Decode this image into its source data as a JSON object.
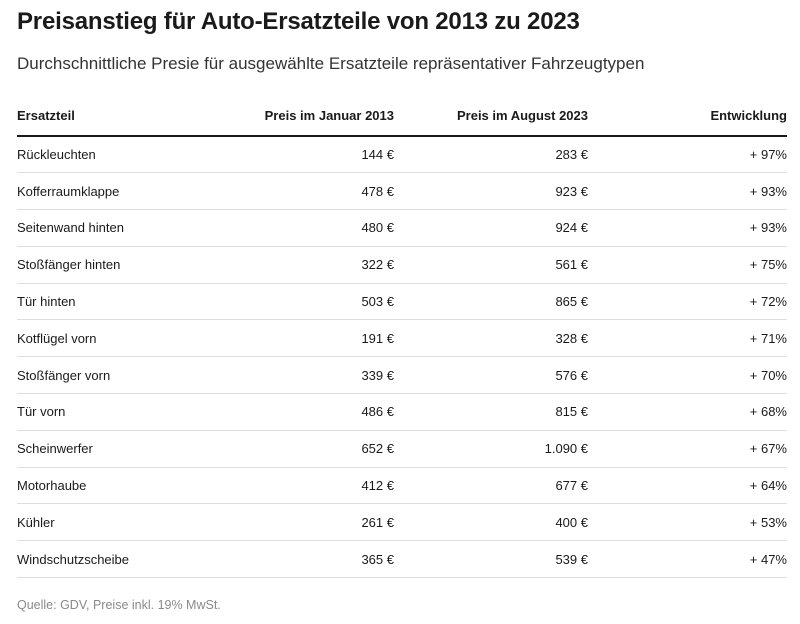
{
  "title": "Preisanstieg für Auto-Ersatzteile von 2013 zu 2023",
  "subtitle": "Durchschnittliche Presie für ausgewählte Ersatzteile repräsentativer Fahrzeugtypen",
  "source": "Quelle: GDV, Preise inkl. 19% MwSt.",
  "chart_data": {
    "type": "table",
    "title": "Preisanstieg für Auto-Ersatzteile von 2013 zu 2023",
    "subtitle": "Durchschnittliche Presie für ausgewählte Ersatzteile repräsentativer Fahrzeugtypen",
    "columns": [
      "Ersatzteil",
      "Preis im Januar 2013",
      "Preis im August 2023",
      "Entwicklung"
    ],
    "rows": [
      [
        "Rückleuchten",
        "144 €",
        "283 €",
        "+ 97%"
      ],
      [
        "Kofferraumklappe",
        "478 €",
        "923 €",
        "+ 93%"
      ],
      [
        "Seitenwand hinten",
        "480 €",
        "924 €",
        "+ 93%"
      ],
      [
        "Stoßfänger hinten",
        "322 €",
        "561 €",
        "+ 75%"
      ],
      [
        "Tür hinten",
        "503 €",
        "865 €",
        "+ 72%"
      ],
      [
        "Kotflügel vorn",
        "191 €",
        "328 €",
        "+ 71%"
      ],
      [
        "Stoßfänger vorn",
        "339 €",
        "576 €",
        "+ 70%"
      ],
      [
        "Tür vorn",
        "486 €",
        "815 €",
        "+ 68%"
      ],
      [
        "Scheinwerfer",
        "652 €",
        "1.090 €",
        "+ 67%"
      ],
      [
        "Motorhaube",
        "412 €",
        "677 €",
        "+ 64%"
      ],
      [
        "Kühler",
        "261 €",
        "400 €",
        "+ 53%"
      ],
      [
        "Windschutzscheibe",
        "365 €",
        "539 €",
        "+ 47%"
      ]
    ]
  }
}
